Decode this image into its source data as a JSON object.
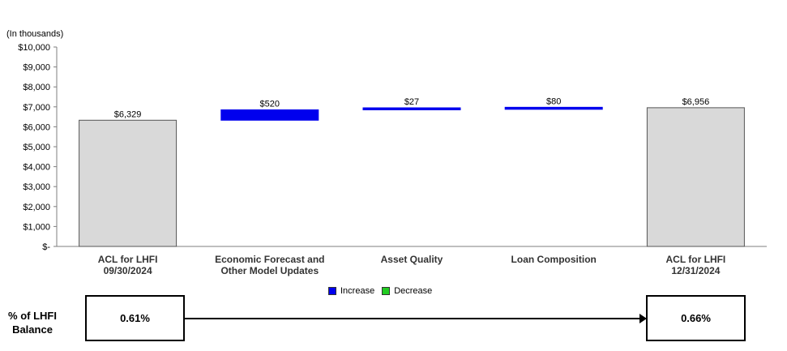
{
  "unit_label": "(In thousands)",
  "chart_data": {
    "type": "bar",
    "subtype": "waterfall",
    "categories": [
      "ACL  for LHFI\n09/30/2024",
      "Economic Forecast and\nOther Model Updates",
      "Asset Quality",
      "Loan Composition",
      "ACL  for LHFI\n12/31/2024"
    ],
    "values": [
      6329,
      520,
      27,
      80,
      6956
    ],
    "kinds": [
      "total",
      "increase",
      "increase",
      "increase",
      "total"
    ],
    "data_labels": [
      "$6,329",
      "$520",
      "$27",
      "$80",
      "$6,956"
    ],
    "ylim": [
      0,
      10000
    ],
    "y_ticks": [
      0,
      1000,
      2000,
      3000,
      4000,
      5000,
      6000,
      7000,
      8000,
      9000,
      10000
    ],
    "y_tick_labels": [
      "$-",
      "$1,000",
      "$2,000",
      "$3,000",
      "$4,000",
      "$5,000",
      "$6,000",
      "$7,000",
      "$8,000",
      "$9,000",
      "$10,000"
    ],
    "legend": [
      "Increase",
      "Decrease"
    ],
    "legend_position": "bottom",
    "grid": false
  },
  "colors": {
    "total": "#d9d9d9",
    "increase": "#0000ee",
    "decrease": "#22cc22",
    "axis": "#7f7f7f"
  },
  "legend": {
    "increase_label": "Increase",
    "decrease_label": "Decrease"
  },
  "balance": {
    "label_line1": "% of LHFI",
    "label_line2": "Balance",
    "start_value": "0.61%",
    "end_value": "0.66%"
  }
}
